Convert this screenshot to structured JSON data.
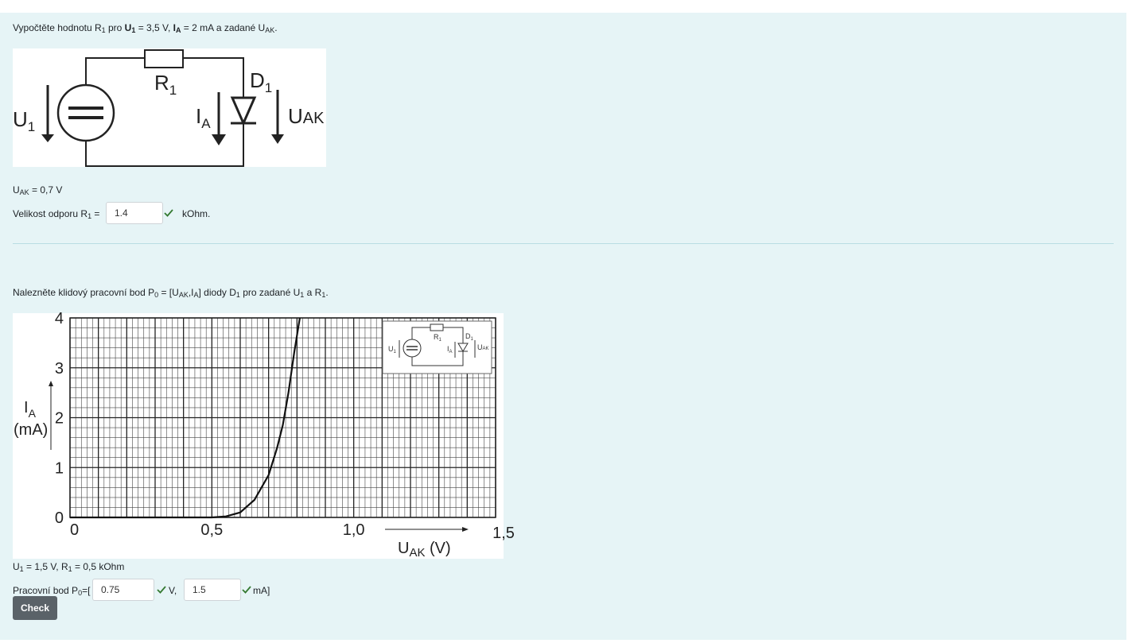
{
  "q1": {
    "prompt_pre": "Vypočtěte hodnotu R",
    "prompt_sub1": "1",
    "prompt_mid1": " pro ",
    "prompt_u": "U",
    "prompt_u_sub": "1",
    "prompt_mid2": " = 3,5 V, ",
    "prompt_i": "I",
    "prompt_i_sub": "A",
    "prompt_mid3": " = 2 mA a zadané U",
    "prompt_uak_sub": "AK",
    "prompt_end": ".",
    "circuit": {
      "u1": "U",
      "u1_sub": "1",
      "r1": "R",
      "r1_sub": "1",
      "d1": "D",
      "d1_sub": "1",
      "ia": "I",
      "ia_sub": "A",
      "uak": "U",
      "uak_sub": "AK"
    },
    "given_pre": "U",
    "given_sub": "AK",
    "given_post": " = 0,7 V",
    "answer_label_pre": "Velikost odporu R",
    "answer_label_sub": "1",
    "answer_label_post": " = ",
    "answer_value": "1.4",
    "answer_unit": "kOhm."
  },
  "q2": {
    "prompt_pre": "Nalezněte klidový pracovní bod P",
    "prompt_p_sub": "0",
    "prompt_mid1": " = [U",
    "prompt_uak_sub": "AK",
    "prompt_mid2": ",I",
    "prompt_ia_sub": "A",
    "prompt_mid3": "] diody D",
    "prompt_d_sub": "1",
    "prompt_mid4": " pro zadané U",
    "prompt_u_sub": "1",
    "prompt_mid5": " a R",
    "prompt_r_sub": "1",
    "prompt_end": ".",
    "given_pre": "U",
    "given_u_sub": "1",
    "given_mid": " = 1,5 V, R",
    "given_r_sub": "1",
    "given_post": " = 0,5 kOhm",
    "answer_label_pre": "Pracovní bod P",
    "answer_label_sub": "0",
    "answer_label_post": "=[",
    "answer_uak": "0.75",
    "answer_sep": " V, ",
    "answer_ia": "1.5",
    "answer_end": " mA]"
  },
  "chart_data": {
    "type": "line",
    "xlabel": "U",
    "xlabel_sub": "AK",
    "xlabel_unit": " (V)",
    "ylabel": "I",
    "ylabel_sub": "A",
    "ylabel_unit": "(mA)",
    "xlim": [
      0,
      1.5
    ],
    "ylim": [
      0,
      4
    ],
    "x_ticks": [
      "0",
      "0,5",
      "1,0",
      "1,5"
    ],
    "y_ticks": [
      "0",
      "1",
      "2",
      "3",
      "4"
    ],
    "grid": true,
    "series": [
      {
        "x": [
          0,
          0.5,
          0.55,
          0.6,
          0.65,
          0.7,
          0.73,
          0.75,
          0.77,
          0.79,
          0.81
        ],
        "y": [
          0,
          0.0,
          0.02,
          0.1,
          0.35,
          0.85,
          1.4,
          1.85,
          2.5,
          3.3,
          4.0
        ]
      }
    ],
    "inset": {
      "u1": "U",
      "u1_sub": "1",
      "r1": "R",
      "r1_sub": "1",
      "d1": "D",
      "d1_sub": "1",
      "ia": "I",
      "ia_sub": "A",
      "uak": "U",
      "uak_sub": "AK"
    }
  },
  "check_label": "Check",
  "colors": {
    "panel": "#e6f4f6",
    "check": "#357a32",
    "button": "#5a6268"
  }
}
